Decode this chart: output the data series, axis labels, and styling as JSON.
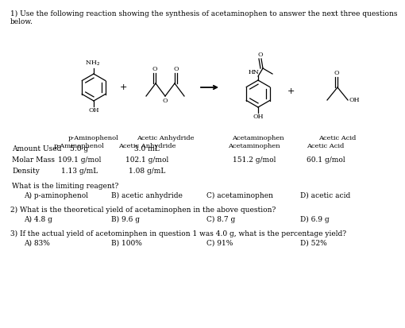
{
  "bg_color": "#ffffff",
  "title_line1": "1) Use the following reaction showing the synthesis of acetaminophen to answer the next three questions",
  "title_line2": "below.",
  "compound_labels": [
    "p-Aminophenol",
    "Acetic Anhydride",
    "Acetaminophen",
    "Acetic Acid"
  ],
  "row_labels": [
    "Amount Used",
    "Molar Mass",
    "Density"
  ],
  "table_data": [
    [
      "5.0 g",
      "3.0 mL",
      "",
      ""
    ],
    [
      "109.1 g/mol",
      "102.1 g/mol",
      "151.2 g/mol",
      "60.1 g/mol"
    ],
    [
      "1.13 g/mL",
      "1.08 g/mL",
      "",
      ""
    ]
  ],
  "q1_header": "What is the limiting reagent?",
  "q1_choices": [
    "A) p-aminophenol",
    "B) acetic anhydride",
    "C) acetaminophen",
    "D) acetic acid"
  ],
  "q2_text": "2) What is the theoretical yield of acetaminophen in the above question?",
  "q2_choices": [
    "A) 4.8 g",
    "B) 9.6 g",
    "C) 8.7 g",
    "D) 6.9 g"
  ],
  "q3_text": "3) If the actual yield of acetominphen in question 1 was 4.0 g, what is the percentage yield?",
  "q3_choices": [
    "A) 83%",
    "B) 100%",
    "C) 91%",
    "D) 52%"
  ]
}
